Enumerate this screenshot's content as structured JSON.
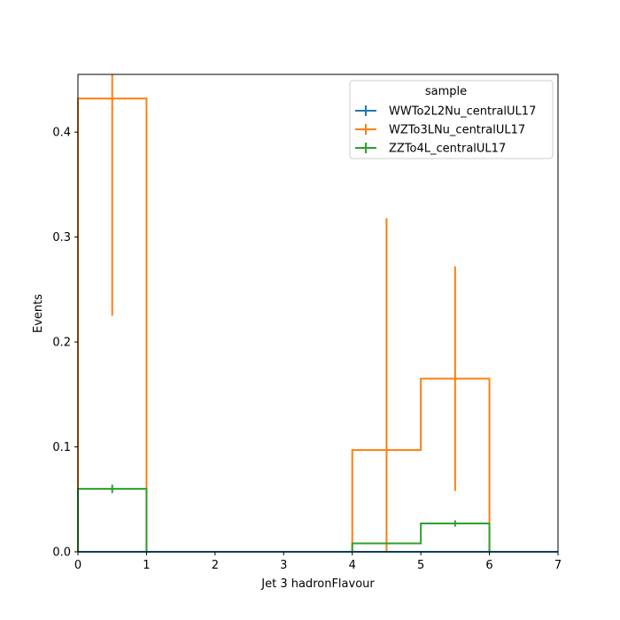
{
  "chart_data": {
    "type": "histogram",
    "xlabel": "Jet 3 hadronFlavour",
    "ylabel": "Events",
    "xlim": [
      0,
      7
    ],
    "ylim": [
      0,
      0.455
    ],
    "xticks": [
      0,
      1,
      2,
      3,
      4,
      5,
      6,
      7
    ],
    "xtick_labels": [
      "0",
      "1",
      "2",
      "3",
      "4",
      "5",
      "6",
      "7"
    ],
    "yticks": [
      0.0,
      0.1,
      0.2,
      0.3,
      0.4
    ],
    "ytick_labels": [
      "0.0",
      "0.1",
      "0.2",
      "0.3",
      "0.4"
    ],
    "bin_edges": [
      0,
      1,
      2,
      3,
      4,
      5,
      6,
      7
    ],
    "grid": false,
    "legend": {
      "title": "sample",
      "placement": "upper-right"
    },
    "series": [
      {
        "name": "WWTo2L2Nu_centralUL17",
        "color": "#1f77b4",
        "values": [
          0,
          0,
          0,
          0,
          0,
          0,
          0
        ],
        "errors": [
          0,
          0,
          0,
          0,
          0,
          0,
          0
        ]
      },
      {
        "name": "WZTo3LNu_centralUL17",
        "color": "#ff7f0e",
        "values": [
          0.432,
          0,
          0,
          0,
          0.097,
          0.165,
          0
        ],
        "errors": [
          0.207,
          0,
          0,
          0,
          0.221,
          0.107,
          0
        ]
      },
      {
        "name": "ZZTo4L_centralUL17",
        "color": "#2ca02c",
        "values": [
          0.06,
          0,
          0,
          0,
          0.008,
          0.027,
          0
        ],
        "errors": [
          0.004,
          0,
          0,
          0,
          0.001,
          0.003,
          0
        ]
      }
    ]
  }
}
